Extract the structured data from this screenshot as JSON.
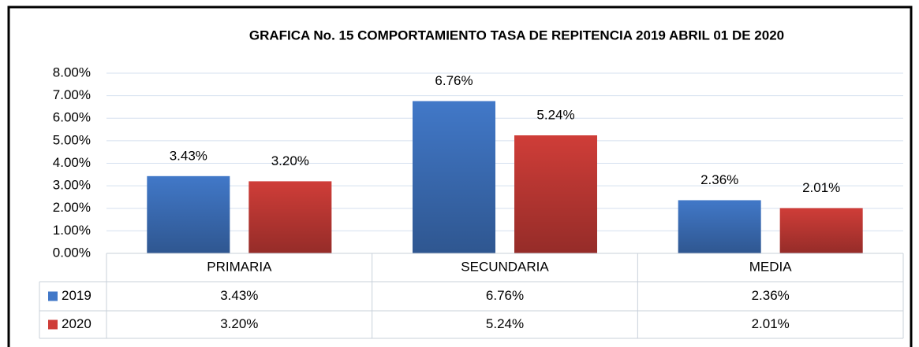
{
  "chart_data": {
    "type": "bar",
    "title": "GRAFICA No. 15 COMPORTAMIENTO TASA DE REPITENCIA  2019 ABRIL 01 DE 2020",
    "categories": [
      "PRIMARIA",
      "SECUNDARIA",
      "MEDIA"
    ],
    "series": [
      {
        "name": "2019",
        "color": "#4178c8",
        "values": [
          3.43,
          6.76,
          2.36
        ],
        "value_labels": [
          "3.43%",
          "6.76%",
          "2.36%"
        ]
      },
      {
        "name": "2020",
        "color": "#cf3d38",
        "values": [
          3.2,
          5.24,
          2.01
        ],
        "value_labels": [
          "3.20%",
          "5.24%",
          "2.01%"
        ]
      }
    ],
    "ylim": [
      0,
      8
    ],
    "yticks": [
      {
        "value": 0,
        "label": "0.00%"
      },
      {
        "value": 1,
        "label": "1.00%"
      },
      {
        "value": 2,
        "label": "2.00%"
      },
      {
        "value": 3,
        "label": "3.00%"
      },
      {
        "value": 4,
        "label": "4.00%"
      },
      {
        "value": 5,
        "label": "5.00%"
      },
      {
        "value": 6,
        "label": "6.00%"
      },
      {
        "value": 7,
        "label": "7.00%"
      },
      {
        "value": 8,
        "label": "8.00%"
      }
    ],
    "grid": true
  }
}
